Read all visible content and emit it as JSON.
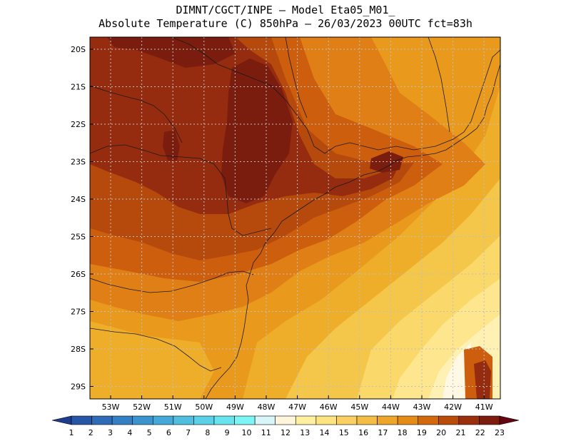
{
  "header": {
    "line1": "DIMNT/CGCT/INPE –  Model Eta05_M01_",
    "line2": "Absolute Temperature (C) 850hPa –  26/03/2023 00UTC fct=83h"
  },
  "map": {
    "lat_labels": [
      "20S",
      "21S",
      "22S",
      "23S",
      "24S",
      "25S",
      "26S",
      "27S",
      "28S",
      "29S"
    ],
    "lon_labels": [
      "53W",
      "52W",
      "51W",
      "50W",
      "49W",
      "48W",
      "47W",
      "46W",
      "45W",
      "44W",
      "43W",
      "42W",
      "41W"
    ],
    "contour_classes": [
      {
        "max": 15,
        "color": "#f4c64a"
      },
      {
        "max": 16,
        "color": "#efae2a"
      },
      {
        "max": 17,
        "color": "#e99a1c"
      },
      {
        "max": 18,
        "color": "#e07f15"
      },
      {
        "max": 19,
        "color": "#cc5e0e"
      },
      {
        "max": 20,
        "color": "#b64a0c"
      },
      {
        "max": 21,
        "color": "#962c0f"
      },
      {
        "max": 22,
        "color": "#7a1c0e"
      }
    ]
  },
  "colorbar": {
    "labels": [
      "1",
      "2",
      "3",
      "4",
      "5",
      "6",
      "7",
      "8",
      "9",
      "10",
      "11",
      "12",
      "13",
      "14",
      "15",
      "16",
      "17",
      "18",
      "19",
      "20",
      "21",
      "22",
      "23"
    ],
    "colors": [
      "#1e3c8c",
      "#2856a6",
      "#2f6cb8",
      "#3380c4",
      "#3a95cf",
      "#44a9d8",
      "#4fbedf",
      "#5ad1e6",
      "#67e4ee",
      "#7cf5f6",
      "#d8f6fa",
      "#fef5da",
      "#fff0a0",
      "#fde47e",
      "#f9d061",
      "#f4bd45",
      "#eea628",
      "#e68c16",
      "#d4690b",
      "#bb4c08",
      "#9c300c",
      "#7e1c0e",
      "#64060f"
    ]
  }
}
